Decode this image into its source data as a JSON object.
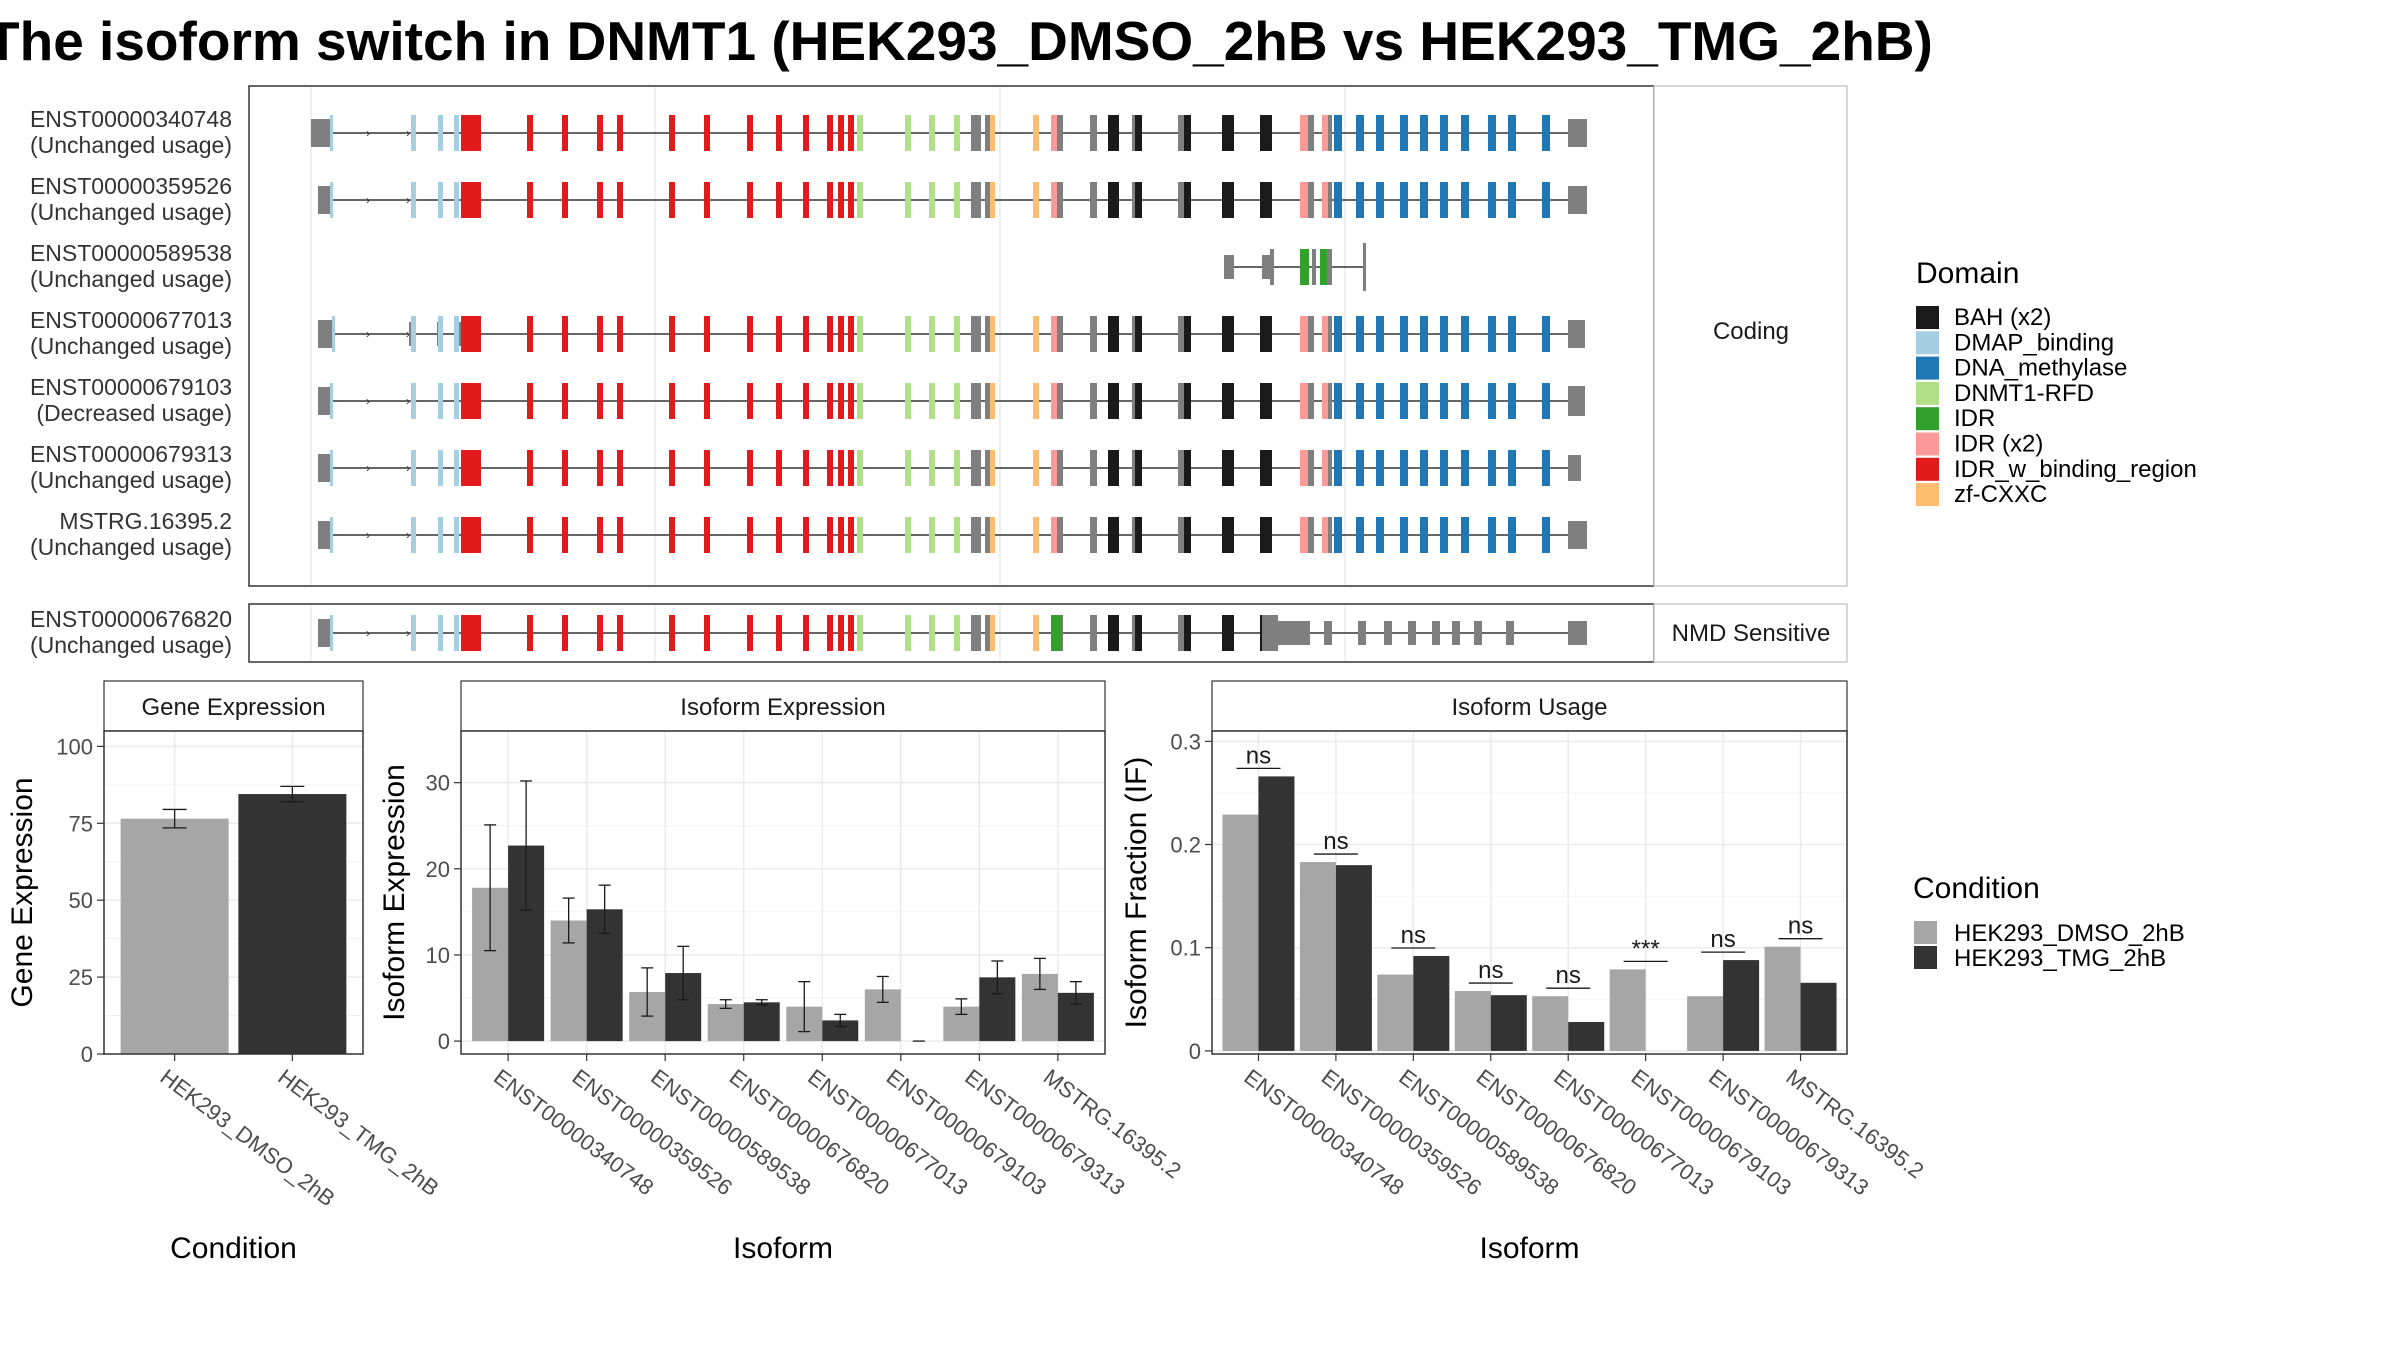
{
  "title": "The isoform switch in DNMT1 (HEK293_DMSO_2hB vs HEK293_TMG_2hB)",
  "transcript_panel": {
    "coding_label": "Coding",
    "nmd_label": "NMD Sensitive",
    "coding_rows": [
      {
        "id": "ENST00000340748",
        "usage": "(Unchanged usage)"
      },
      {
        "id": "ENST00000359526",
        "usage": "(Unchanged usage)"
      },
      {
        "id": "ENST00000589538",
        "usage": "(Unchanged usage)"
      },
      {
        "id": "ENST00000677013",
        "usage": "(Unchanged usage)"
      },
      {
        "id": "ENST00000679103",
        "usage": "(Decreased usage)"
      },
      {
        "id": "ENST00000679313",
        "usage": "(Unchanged usage)"
      },
      {
        "id": "MSTRG.16395.2",
        "usage": "(Unchanged usage)"
      }
    ],
    "nmd_rows": [
      {
        "id": "ENST00000676820",
        "usage": "(Unchanged usage)"
      }
    ]
  },
  "domain_legend": {
    "title": "Domain",
    "items": [
      {
        "label": "BAH (x2)",
        "color": "#1a1a1a"
      },
      {
        "label": "DMAP_binding",
        "color": "#a6cee3"
      },
      {
        "label": "DNA_methylase",
        "color": "#1f78b4"
      },
      {
        "label": "DNMT1-RFD",
        "color": "#b2df8a"
      },
      {
        "label": "IDR",
        "color": "#33a02c"
      },
      {
        "label": "IDR (x2)",
        "color": "#fb9a99"
      },
      {
        "label": "IDR_w_binding_region",
        "color": "#e31a1c"
      },
      {
        "label": "zf-CXXC",
        "color": "#fdbf6f"
      }
    ]
  },
  "condition_legend": {
    "title": "Condition",
    "items": [
      {
        "label": "HEK293_DMSO_2hB",
        "color": "#a6a6a6"
      },
      {
        "label": "HEK293_TMG_2hB",
        "color": "#333333"
      }
    ]
  },
  "chart_data": [
    {
      "type": "bar",
      "title": "Gene Expression",
      "xlabel": "Condition",
      "ylabel": "Gene Expression",
      "ylim": [
        0,
        105
      ],
      "yticks": [
        0,
        25,
        50,
        75,
        100
      ],
      "categories": [
        "HEK293_DMSO_2hB",
        "HEK293_TMG_2hB"
      ],
      "values": [
        76.5,
        84.5
      ],
      "errors": [
        3.0,
        2.5
      ],
      "grid": true
    },
    {
      "type": "bar",
      "title": "Isoform Expression",
      "xlabel": "Isoform",
      "ylabel": "Isoform Expression",
      "ylim": [
        -1.5,
        36
      ],
      "yticks": [
        0,
        10,
        20,
        30
      ],
      "categories": [
        "ENST00000340748",
        "ENST00000359526",
        "ENST00000589538",
        "ENST00000676820",
        "ENST00000677013",
        "ENST00000679103",
        "ENST00000679313",
        "MSTRG.16395.2"
      ],
      "series": [
        {
          "name": "HEK293_DMSO_2hB",
          "values": [
            17.8,
            14.0,
            5.7,
            4.3,
            4.0,
            6.0,
            4.0,
            7.8
          ],
          "errors": [
            7.3,
            2.6,
            2.8,
            0.5,
            2.9,
            1.5,
            0.9,
            1.8
          ]
        },
        {
          "name": "HEK293_TMG_2hB",
          "values": [
            22.7,
            15.3,
            7.9,
            4.5,
            2.4,
            0.0,
            7.4,
            5.6
          ],
          "errors": [
            7.5,
            2.8,
            3.1,
            0.3,
            0.7,
            0.0,
            1.9,
            1.3
          ]
        }
      ],
      "grid": true
    },
    {
      "type": "bar",
      "title": "Isoform Usage",
      "xlabel": "Isoform",
      "ylabel": "Isoform Fraction (IF)",
      "ylim": [
        -0.003,
        0.31
      ],
      "yticks": [
        0.0,
        0.1,
        0.2,
        0.3
      ],
      "categories": [
        "ENST00000340748",
        "ENST00000359526",
        "ENST00000589538",
        "ENST00000676820",
        "ENST00000677013",
        "ENST00000679103",
        "ENST00000679313",
        "MSTRG.16395.2"
      ],
      "series": [
        {
          "name": "HEK293_DMSO_2hB",
          "values": [
            0.229,
            0.183,
            0.074,
            0.058,
            0.053,
            0.079,
            0.053,
            0.101
          ]
        },
        {
          "name": "HEK293_TMG_2hB",
          "values": [
            0.266,
            0.18,
            0.092,
            0.054,
            0.028,
            0.0,
            0.088,
            0.066
          ]
        }
      ],
      "significance": [
        "ns",
        "ns",
        "ns",
        "ns",
        "ns",
        "***",
        "ns",
        "ns"
      ],
      "grid": true
    }
  ]
}
